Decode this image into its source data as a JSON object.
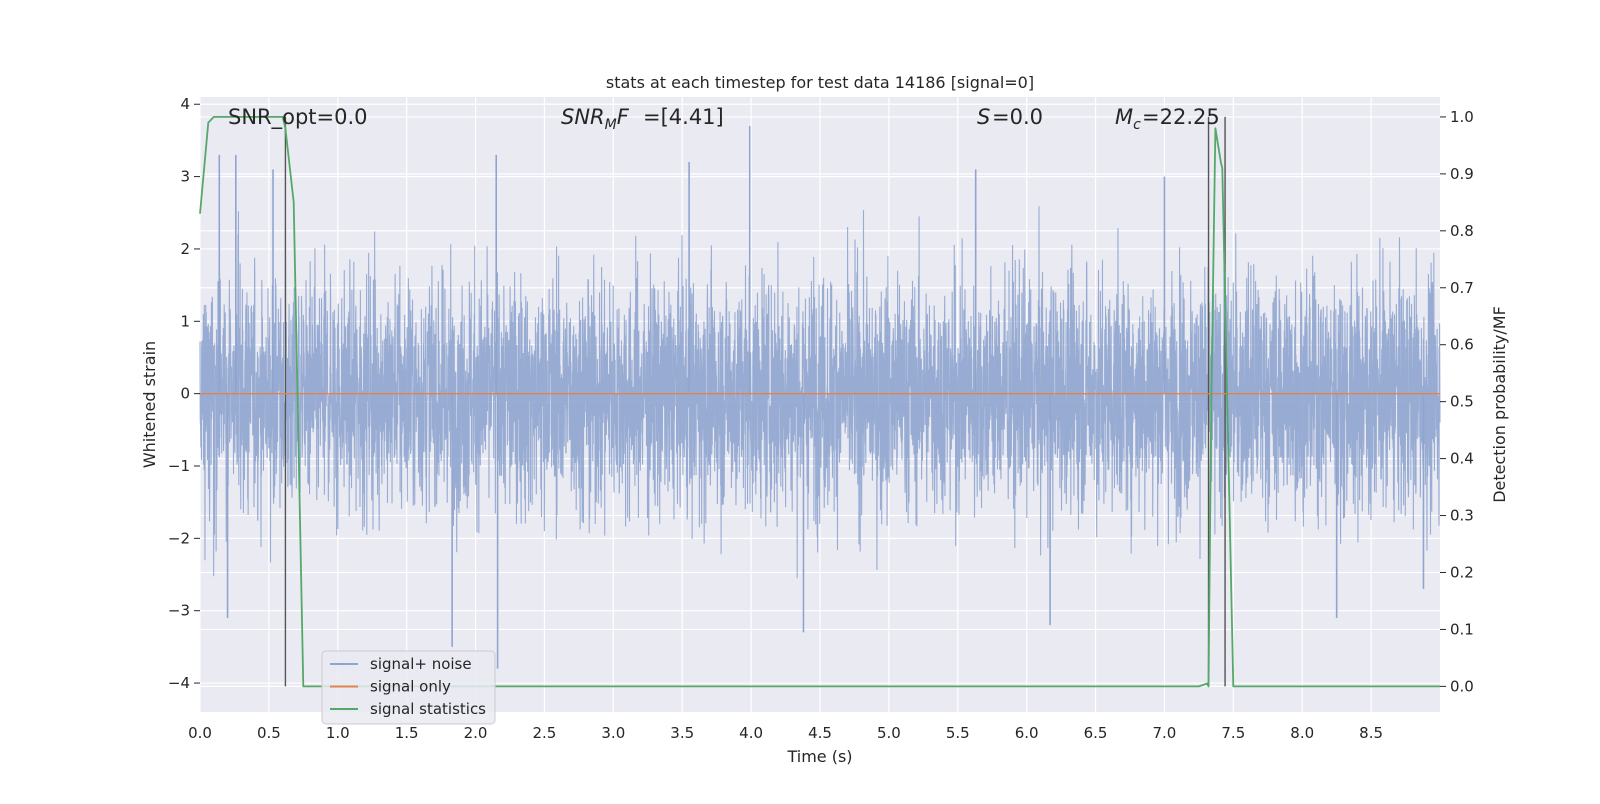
{
  "chart_data": {
    "type": "line",
    "title": "stats at each timestep for test data 14186 [signal=0]",
    "xlabel": "Time (s)",
    "ylabel": "Whitened strain",
    "y2label": "Detection probability/MF",
    "xlim": [
      0.0,
      9.0
    ],
    "ylim": [
      -4.4,
      4.1
    ],
    "y2lim": [
      -0.045,
      1.035
    ],
    "x_ticks": [
      "0.0",
      "0.5",
      "1.0",
      "1.5",
      "2.0",
      "2.5",
      "3.0",
      "3.5",
      "4.0",
      "4.5",
      "5.0",
      "5.5",
      "6.0",
      "6.5",
      "7.0",
      "7.5",
      "8.0",
      "8.5"
    ],
    "y_ticks": [
      "4",
      "3",
      "2",
      "1",
      "0",
      "−1",
      "−2",
      "−3",
      "−4"
    ],
    "y2_ticks": [
      "1.0",
      "0.9",
      "0.8",
      "0.7",
      "0.6",
      "0.5",
      "0.4",
      "0.3",
      "0.2",
      "0.1",
      "0.0"
    ],
    "grid": true,
    "legend_position": "lower-left",
    "annotations": {
      "snr_opt": "SNR_opt=0.0",
      "snr_mf": "=[4.41]",
      "s_val": "=0.0",
      "mc_val": "=22.25"
    },
    "vertical_markers_x": [
      0.62,
      7.32,
      7.44
    ],
    "series": [
      {
        "name": "signal+ noise",
        "color": "#8fa5cf",
        "axis": "left",
        "description_sample_rate_hz": 2048,
        "typical_envelope": [
          -1.8,
          1.8
        ],
        "peak_samples": [
          {
            "x": 0.14,
            "y": 3.3
          },
          {
            "x": 0.26,
            "y": 3.3
          },
          {
            "x": 0.53,
            "y": 3.1
          },
          {
            "x": 2.15,
            "y": 3.3
          },
          {
            "x": 3.55,
            "y": 3.2
          },
          {
            "x": 3.99,
            "y": 3.7
          },
          {
            "x": 5.63,
            "y": 3.1
          },
          {
            "x": 7.0,
            "y": 3.0
          },
          {
            "x": 0.2,
            "y": -3.1
          },
          {
            "x": 1.83,
            "y": -3.5
          },
          {
            "x": 2.16,
            "y": -3.8
          },
          {
            "x": 4.38,
            "y": -3.3
          },
          {
            "x": 6.17,
            "y": -3.2
          },
          {
            "x": 8.25,
            "y": -3.1
          },
          {
            "x": 8.88,
            "y": -2.7
          }
        ]
      },
      {
        "name": "signal only",
        "color": "#dd8452",
        "axis": "left",
        "x": [
          0.0,
          9.0
        ],
        "y": [
          0.0,
          0.0
        ]
      },
      {
        "name": "signal statistics",
        "color": "#55a868",
        "axis": "right",
        "x": [
          0.0,
          0.06,
          0.1,
          0.2,
          0.6,
          0.62,
          0.68,
          0.75,
          7.25,
          7.31,
          7.32,
          7.34,
          7.37,
          7.41,
          7.42,
          7.5,
          9.0
        ],
        "y": [
          0.83,
          0.99,
          1.0,
          1.0,
          1.0,
          0.98,
          0.85,
          0.0,
          0.0,
          0.005,
          0.0,
          0.5,
          0.98,
          0.92,
          0.91,
          0.0,
          0.0
        ]
      }
    ]
  }
}
